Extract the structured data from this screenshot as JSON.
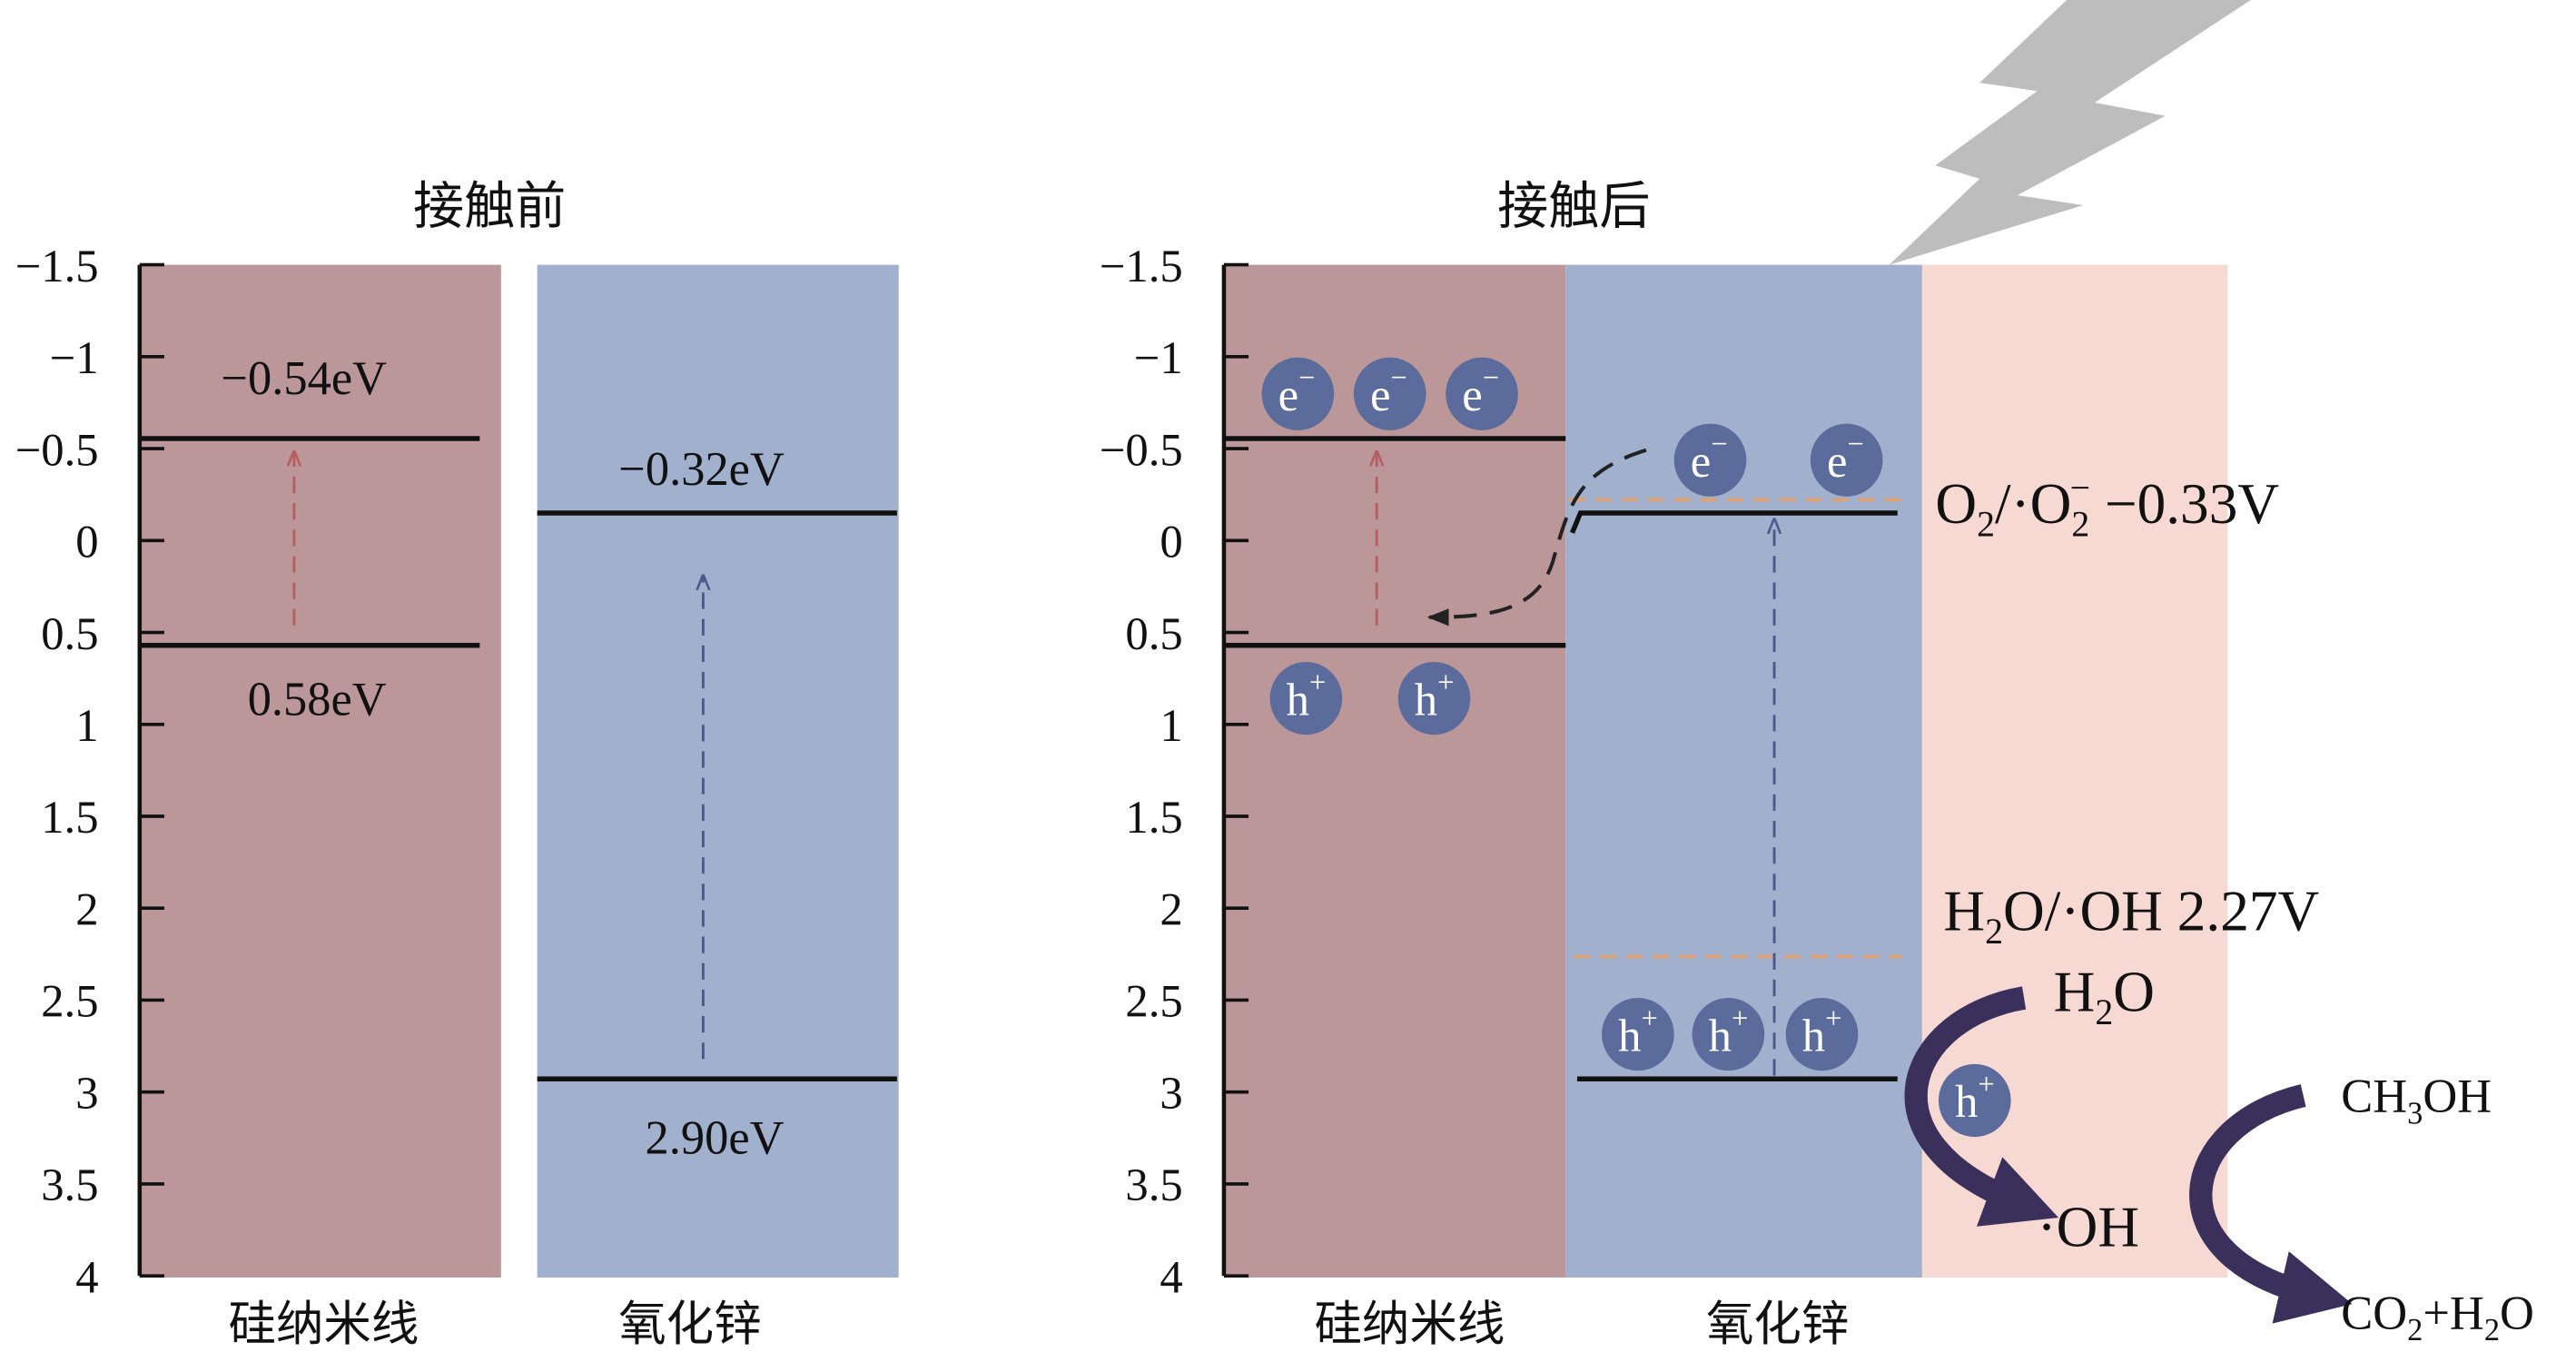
{
  "left_panel": {
    "title": "接触前",
    "y_ticks": [
      "−1.5",
      "−1",
      "−0.5",
      "0",
      "0.5",
      "1",
      "1.5",
      "2",
      "2.5",
      "3",
      "3.5",
      "4"
    ],
    "materials": [
      "硅纳米线",
      "氧化锌"
    ],
    "levels": [
      "−0.54eV",
      "0.58eV",
      "−0.32eV",
      "2.90eV"
    ]
  },
  "right_panel": {
    "title": "接触后",
    "y_ticks": [
      "−1.5",
      "−1",
      "−0.5",
      "0",
      "0.5",
      "1",
      "1.5",
      "2",
      "2.5",
      "3",
      "3.5",
      "4"
    ],
    "materials": [
      "硅纳米线",
      "氧化锌"
    ],
    "electron": [
      "e",
      "−"
    ],
    "hole": [
      "h",
      "+"
    ],
    "o2_couple": [
      "O",
      "2",
      "/·O",
      "2",
      "−",
      " −0.33V"
    ],
    "oh_couple": [
      "H",
      "2",
      "O/·OH 2.27V"
    ],
    "h2o": [
      "H",
      "2",
      "O"
    ],
    "oh": "·OH",
    "methanol": [
      "CH",
      "3",
      "OH"
    ],
    "products": [
      "CO",
      "2",
      "+H",
      "2",
      "O"
    ]
  }
}
